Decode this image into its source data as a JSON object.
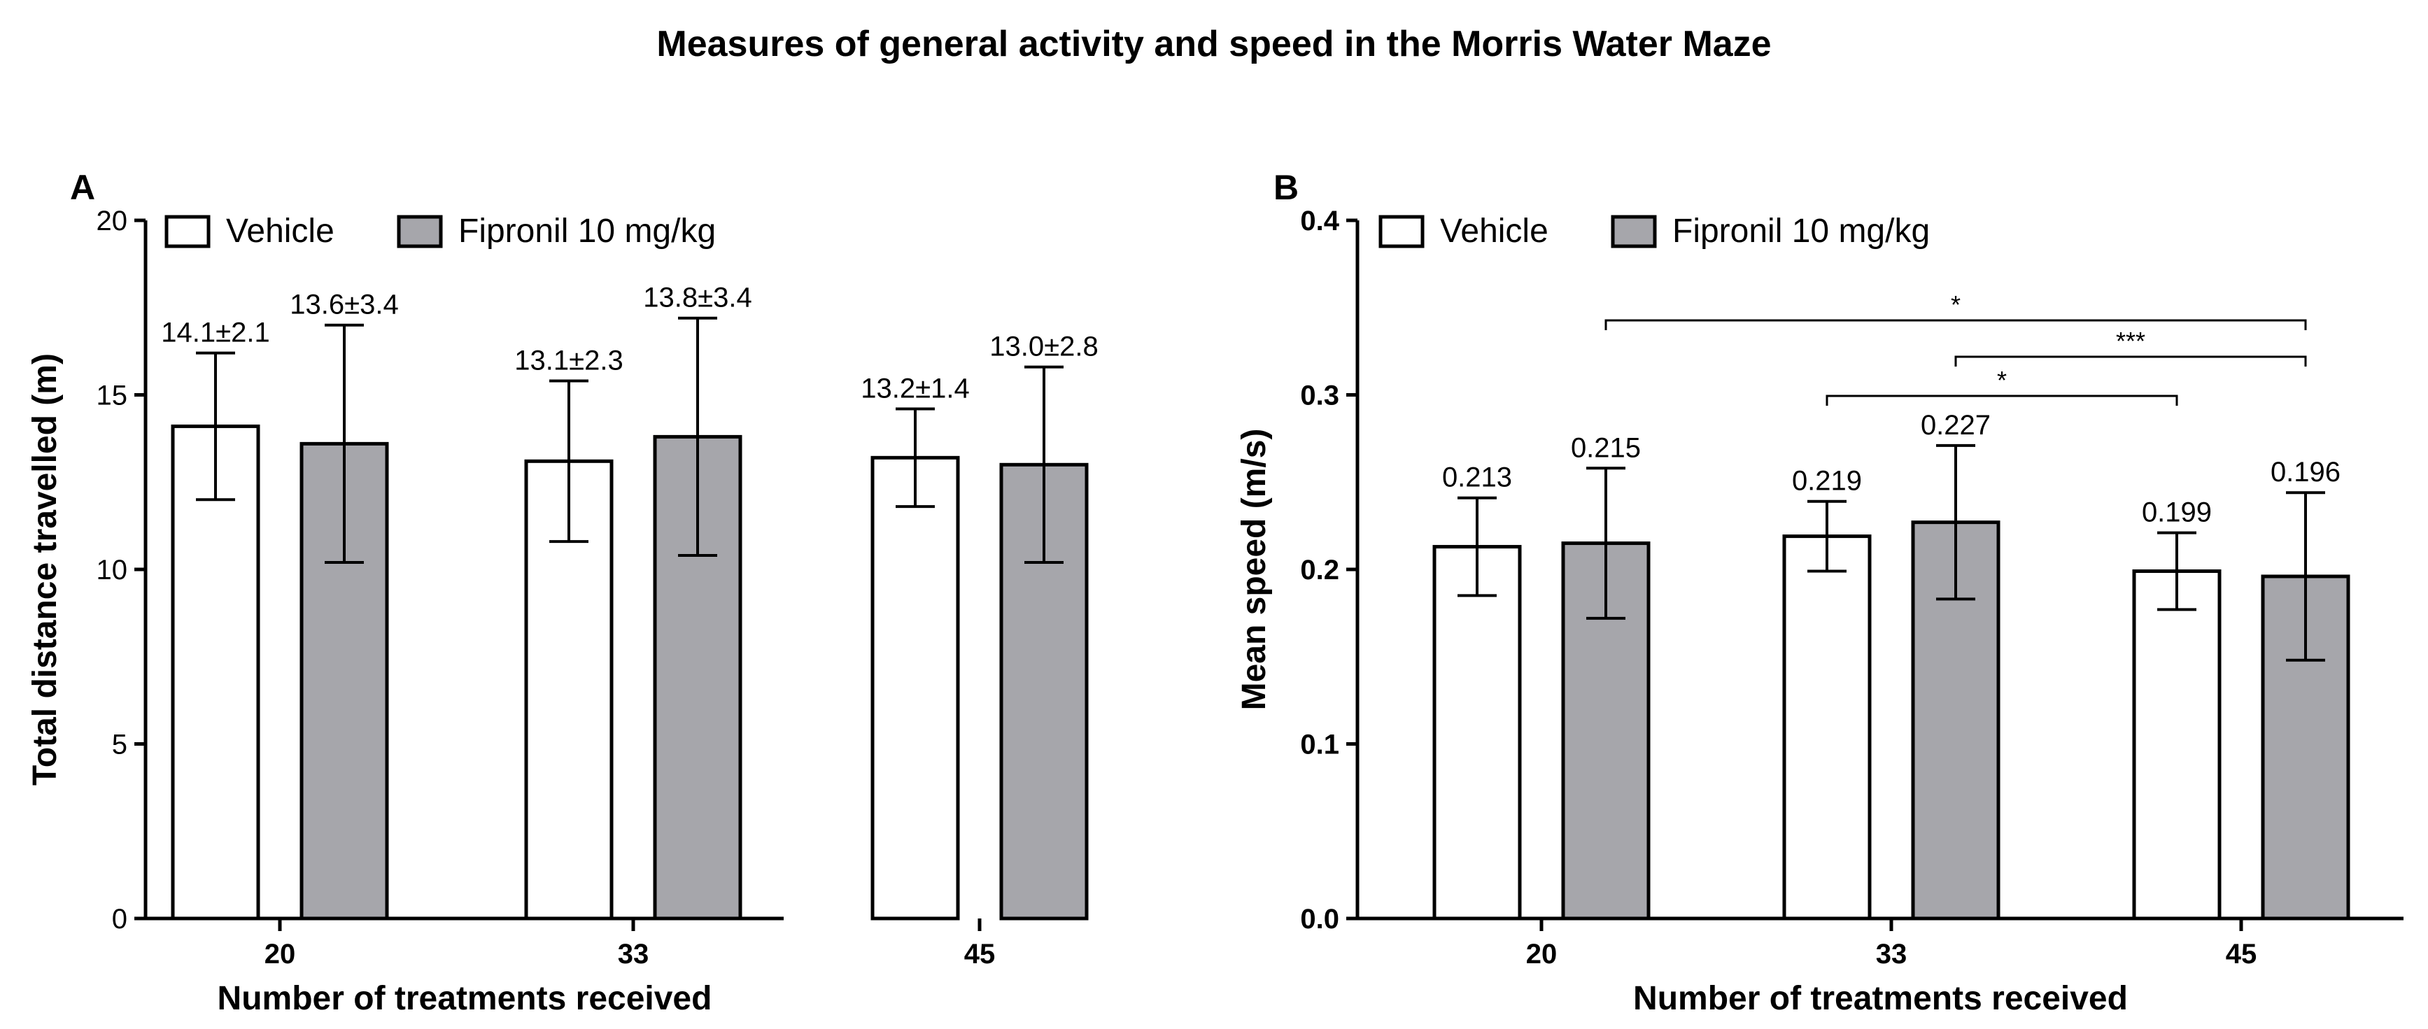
{
  "title": "Measures of general activity and speed in the  Morris Water Maze",
  "colors": {
    "vehicle": "#ffffff",
    "fipronil": "#a6a6ab",
    "stroke": "#000000"
  },
  "chart_data": [
    {
      "panel_label": "A",
      "type": "bar",
      "xlabel": "Number of treatments received",
      "ylabel": "Total distance travelled (m)",
      "ylim": [
        0,
        20
      ],
      "yticks": [
        "0",
        "5",
        "10",
        "15",
        "20"
      ],
      "categories": [
        "20",
        "33",
        "45"
      ],
      "legend_position": "top-left",
      "series": [
        {
          "name": "Vehicle",
          "values": [
            14.1,
            13.1,
            13.2
          ],
          "errors": [
            2.1,
            2.3,
            1.4
          ],
          "labels": [
            "14.1±2.1",
            "13.1±2.3",
            "13.2±1.4"
          ]
        },
        {
          "name": "Fipronil 10 mg/kg",
          "values": [
            13.6,
            13.8,
            13.0
          ],
          "errors": [
            3.4,
            3.4,
            2.8
          ],
          "labels": [
            "13.6±3.4",
            "13.8±3.4",
            "13.0±2.8"
          ]
        }
      ],
      "significance": []
    },
    {
      "panel_label": "B",
      "type": "bar",
      "xlabel": "Number of treatments received",
      "ylabel": "Mean speed (m/s)",
      "ylim": [
        0,
        0.4
      ],
      "yticks": [
        "0.0",
        "0.1",
        "0.2",
        "0.3",
        "0.4"
      ],
      "categories": [
        "20",
        "33",
        "45"
      ],
      "legend_position": "top-left",
      "series": [
        {
          "name": "Vehicle",
          "values": [
            0.213,
            0.219,
            0.199
          ],
          "errors": [
            0.028,
            0.02,
            0.022
          ],
          "labels": [
            "0.213",
            "0.219",
            "0.199"
          ]
        },
        {
          "name": "Fipronil 10 mg/kg",
          "values": [
            0.215,
            0.227,
            0.196
          ],
          "errors": [
            0.043,
            0.044,
            0.048
          ],
          "labels": [
            "0.215",
            "0.227",
            "0.196"
          ]
        }
      ],
      "significance": [
        {
          "from": "20 Fipronil 10 mg/kg",
          "to": "45 Fipronil 10 mg/kg",
          "label": "*"
        },
        {
          "from": "33 Fipronil 10 mg/kg",
          "to": "45 Fipronil 10 mg/kg",
          "label": "***"
        },
        {
          "from": "33 Vehicle",
          "to": "45 Vehicle",
          "label": "*"
        }
      ]
    }
  ]
}
